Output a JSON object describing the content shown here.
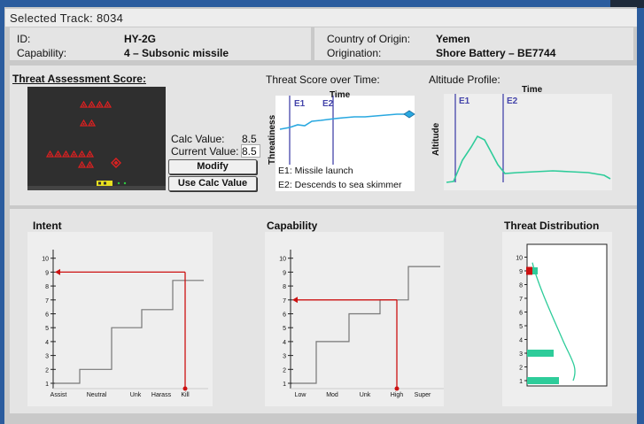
{
  "header": {
    "title": "Selected Track:  8034"
  },
  "info": {
    "id_label": "ID:",
    "id_value": "HY-2G",
    "capability_label": "Capability:",
    "capability_value": "4 – Subsonic missile",
    "country_label": "Country of Origin:",
    "country_value": "Yemen",
    "origination_label": "Origination:",
    "origination_value": "Shore Battery – BE7744"
  },
  "assessment": {
    "title": "Threat Assessment Score:",
    "calc_label": "Calc Value:",
    "calc_value": "8.5",
    "current_label": "Current Value:",
    "current_value": "8.5",
    "modify_button": "Modify",
    "use_calc_button": "Use Calc Value"
  },
  "threat_score": {
    "title": "Threat Score over Time:",
    "time_label": "Time",
    "y_label": "Threatiness",
    "e1": "E1",
    "e2": "E2",
    "legend_e1": "E1: Missile launch",
    "legend_e2": "E2: Descends to sea skimmer"
  },
  "altitude": {
    "title": "Altitude Profile:",
    "time_label": "Time",
    "y_label": "Altitude",
    "e1": "E1",
    "e2": "E2"
  },
  "intent": {
    "title": "Intent",
    "categories": [
      "Assist",
      "Neutral",
      "Unk",
      "Harass",
      "Kill"
    ],
    "yticks": [
      "1",
      "2",
      "3",
      "4",
      "5",
      "6",
      "7",
      "8",
      "9",
      "10"
    ],
    "selected": "Kill",
    "score": 9
  },
  "capability_chart": {
    "title": "Capability",
    "categories": [
      "Low",
      "Mod",
      "Unk",
      "High",
      "Super"
    ],
    "yticks": [
      "1",
      "2",
      "3",
      "4",
      "5",
      "6",
      "7",
      "8",
      "9",
      "10"
    ],
    "selected": "High",
    "score": 7
  },
  "distribution": {
    "title": "Threat Distribution",
    "yticks": [
      "1",
      "2",
      "3",
      "4",
      "5",
      "6",
      "7",
      "8",
      "9",
      "10"
    ],
    "bars": [
      {
        "level": 1,
        "value": 3
      },
      {
        "level": 3,
        "value": 2.5
      },
      {
        "level": 9,
        "value": 1
      }
    ],
    "marker_level": 9
  },
  "colors": {
    "score_line": "#29a8e0",
    "altitude_line": "#2ecc9a",
    "dist_bar": "#2ecc9a",
    "marker": "#cc1111",
    "event_line": "#4444aa"
  }
}
